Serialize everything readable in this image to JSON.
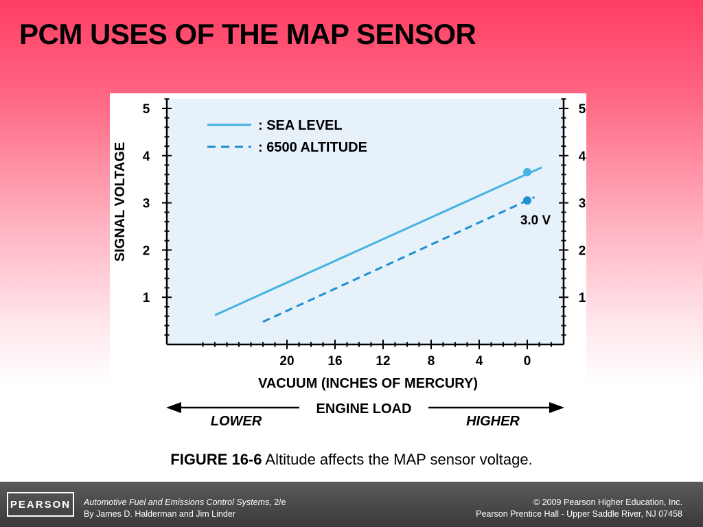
{
  "slide": {
    "title": "PCM USES OF THE MAP SENSOR",
    "caption_label": "FIGURE 16-6",
    "caption_text": " Altitude affects the MAP sensor voltage."
  },
  "footer": {
    "logo": "PEARSON",
    "book_title": "Automotive Fuel and Emissions Control Systems,",
    "edition": " 2/e",
    "authors": "By James D. Halderman and Jim Linder",
    "copyright": "© 2009 Pearson Higher Education, Inc.",
    "publisher": "Pearson Prentice Hall - Upper Saddle River, NJ 07458"
  },
  "colors": {
    "plot_background": "#e6f1fa",
    "sea_level_line": "#44b3e0",
    "altitude_line": "#1e8fd0",
    "axis": "#000000"
  },
  "chart_data": {
    "type": "line",
    "ylabel": "SIGNAL VOLTAGE",
    "xlabel": "VACUUM (INCHES OF MERCURY)",
    "x_ticks": [
      20,
      16,
      12,
      8,
      4,
      0
    ],
    "y_ticks": [
      1,
      2,
      3,
      4,
      5
    ],
    "xlim": [
      28,
      -3
    ],
    "ylim": [
      0,
      5.3
    ],
    "x_reversed": true,
    "grid": false,
    "legend_position": "top-left",
    "series": [
      {
        "name": ": SEA LEVEL",
        "style": "solid",
        "x": [
          26,
          -1.2
        ],
        "y": [
          0.62,
          3.75
        ],
        "marker_point": {
          "x": 0,
          "y": 3.65
        }
      },
      {
        "name": ": 6500 ALTITUDE",
        "style": "dashed",
        "x": [
          22,
          -0.6
        ],
        "y": [
          0.48,
          3.12
        ],
        "marker_point": {
          "x": 0,
          "y": 3.05
        }
      }
    ],
    "annotations": [
      {
        "text": "3.0 V"
      }
    ],
    "load_arrow": {
      "label": "ENGINE LOAD",
      "left": "LOWER",
      "right": "HIGHER"
    }
  }
}
